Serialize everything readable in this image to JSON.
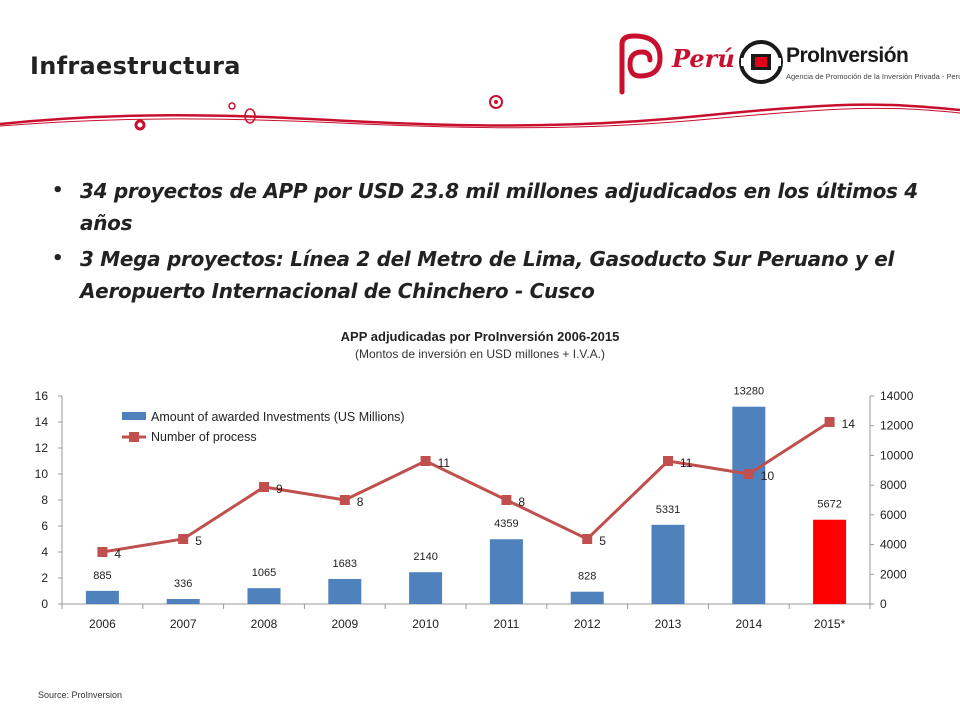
{
  "header": {
    "title": "Infraestructura",
    "peru_logo_text": "Perú",
    "proinversion_name": "ProInversión",
    "proinversion_tagline": "Agencia de Promoción de la Inversión Privada - Perú"
  },
  "bullets": [
    "34 proyectos de APP por USD 23.8 mil millones adjudicados en los últimos 4 años",
    "3 Mega proyectos: Línea 2 del Metro de Lima, Gasoducto Sur Peruano y el Aeropuerto Internacional de Chinchero - Cusco"
  ],
  "chart_data": {
    "type": "bar",
    "title": "APP adjudicadas por ProInversión 2006-2015",
    "subtitle": "(Montos de inversión en USD millones + I.V.A.)",
    "categories": [
      "2006",
      "2007",
      "2008",
      "2009",
      "2010",
      "2011",
      "2012",
      "2013",
      "2014",
      "2015*"
    ],
    "series": [
      {
        "name": "Amount of awarded Investments (US Millions)",
        "type": "bar",
        "axis": "right",
        "values": [
          885,
          336,
          1065,
          1683,
          2140,
          4359,
          828,
          5331,
          13280,
          5672
        ],
        "color": "#4f81bd",
        "highlight": {
          "index": 9,
          "color": "#ff0000"
        }
      },
      {
        "name": "Number of process",
        "type": "line",
        "axis": "left",
        "values": [
          4,
          5,
          9,
          8,
          11,
          8,
          5,
          11,
          10,
          14
        ],
        "color": "#c0504d"
      }
    ],
    "left_axis": {
      "min": 0,
      "max": 16,
      "ticks": [
        0,
        2,
        4,
        6,
        8,
        10,
        12,
        14,
        16
      ]
    },
    "right_axis": {
      "min": 0,
      "max": 14000,
      "ticks": [
        0,
        2000,
        4000,
        6000,
        8000,
        10000,
        12000,
        14000
      ]
    },
    "legend_position": "top-left",
    "grid": false
  },
  "source": "Source: ProInversion"
}
